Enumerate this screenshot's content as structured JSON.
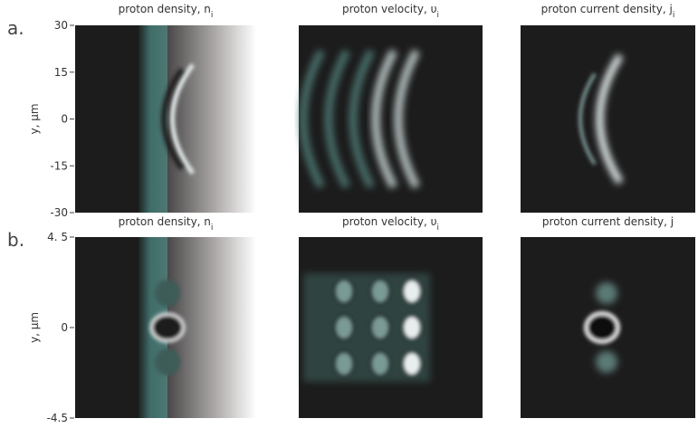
{
  "rows": [
    {
      "label": "a.",
      "y_label": "y, μm",
      "ylim": [
        -30,
        30
      ],
      "yticks": [
        30,
        15,
        0,
        -15,
        -30
      ],
      "panels": [
        {
          "title": "proton density, n",
          "subscript": "i"
        },
        {
          "title": "proton velocity, υ",
          "subscript": "i"
        },
        {
          "title": "proton current density, j",
          "subscript": "i"
        }
      ]
    },
    {
      "label": "b.",
      "y_label": "y, μm",
      "ylim": [
        -4.5,
        4.5
      ],
      "yticks": [
        {
          "value": 4.5,
          "label": "4. 5"
        },
        0,
        {
          "value": -4.5,
          "label": "-4.5"
        }
      ],
      "panels": [
        {
          "title": "proton density, n",
          "subscript": "i"
        },
        {
          "title": "proton velocity, υ",
          "subscript": "i"
        },
        {
          "title": "proton current density, j"
        }
      ]
    }
  ]
}
